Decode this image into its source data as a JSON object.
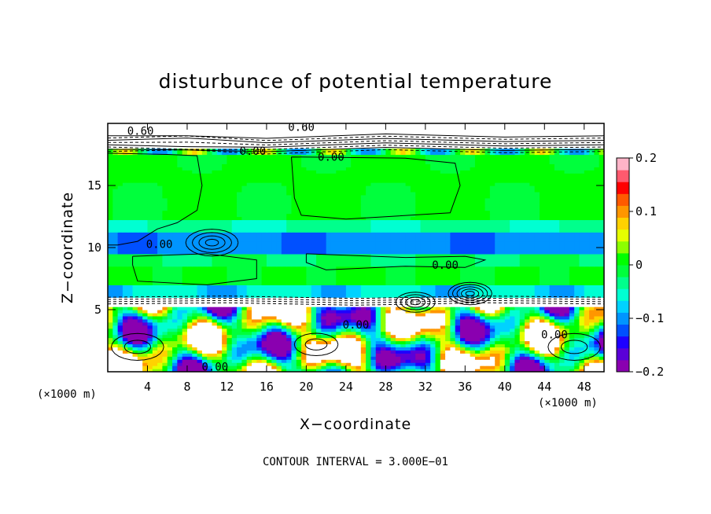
{
  "chart_data": {
    "type": "heatmap",
    "title": "disturbunce of potential temperature",
    "xlabel": "X−coordinate",
    "ylabel": "Z−coordinate",
    "x_unit_left": "(×1000 m)",
    "x_unit_right": "(×1000 m)",
    "footer": "CONTOUR INTERVAL = 3.000E−01",
    "xlim": [
      0,
      50
    ],
    "ylim": [
      0,
      20
    ],
    "x_ticks": [
      "4",
      "8",
      "12",
      "16",
      "20",
      "24",
      "28",
      "32",
      "36",
      "40",
      "44",
      "48"
    ],
    "x_tick_values": [
      4,
      8,
      12,
      16,
      20,
      24,
      28,
      32,
      36,
      40,
      44,
      48
    ],
    "y_ticks": [
      "5",
      "10",
      "15"
    ],
    "y_tick_values": [
      5,
      10,
      15
    ],
    "colorbar": {
      "range": [
        -0.2,
        0.2
      ],
      "tick_labels": [
        "0.2",
        "0.1",
        "0",
        "−0.1",
        "−0.2"
      ],
      "tick_values": [
        0.2,
        0.1,
        0,
        -0.1,
        -0.2
      ],
      "colors": [
        "#8a00b0",
        "#5a00d8",
        "#1e00ff",
        "#0050ff",
        "#0095ff",
        "#00d2ff",
        "#00ffd2",
        "#00ff8c",
        "#00ff3c",
        "#00ff00",
        "#8cff00",
        "#e6ff00",
        "#ffd200",
        "#ff9600",
        "#ff5a00",
        "#ff0000",
        "#ff5a6e",
        "#ffb4c8"
      ]
    },
    "contour_labels": [
      {
        "text": "0.60",
        "x": 3.3,
        "y": 19.4
      },
      {
        "text": "0.60",
        "x": 19.5,
        "y": 19.7
      },
      {
        "text": "0.00",
        "x": 14.6,
        "y": 17.8
      },
      {
        "text": "0.00",
        "x": 22.5,
        "y": 17.3
      },
      {
        "text": "0.00",
        "x": 5.2,
        "y": 10.3
      },
      {
        "text": "0.00",
        "x": 34.0,
        "y": 8.6
      },
      {
        "text": "0.00",
        "x": 25.0,
        "y": 3.8
      },
      {
        "text": "0.00",
        "x": 10.8,
        "y": 0.4
      },
      {
        "text": "0.00",
        "x": 45.0,
        "y": 3.0
      }
    ]
  }
}
